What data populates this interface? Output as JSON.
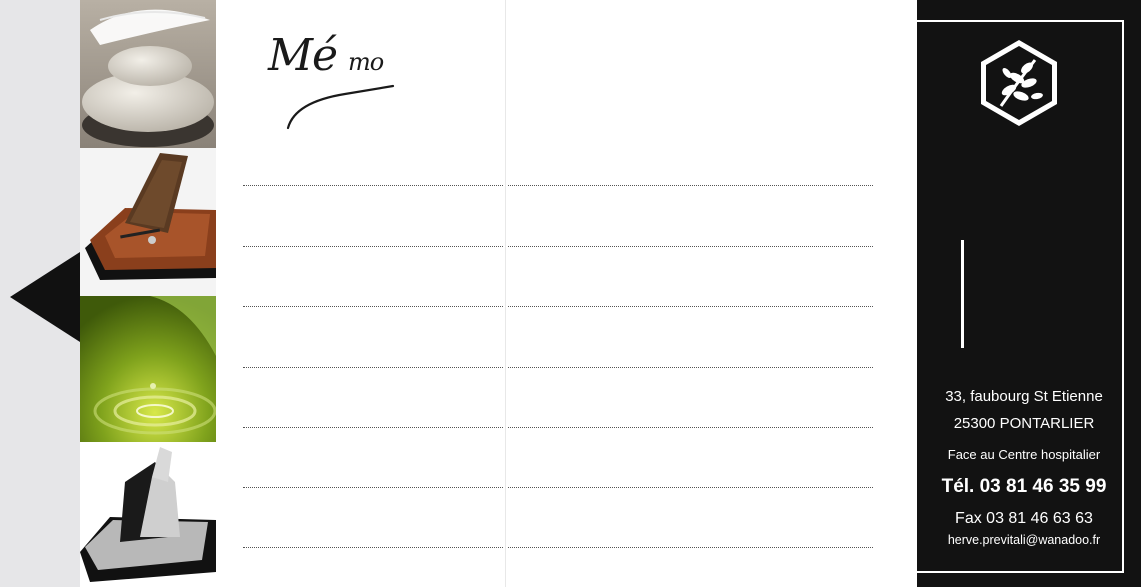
{
  "memo": {
    "title": "Mé",
    "title_small": "mo"
  },
  "contact": {
    "address_line1": "33, faubourg St Etienne",
    "address_line2": "25300 PONTARLIER",
    "location_note": "Face au Centre hospitalier",
    "phone": "Tél. 03 81 46 35 99",
    "fax": "Fax 03 81 46 63 63",
    "email": "herve.previtali@wanadoo.fr"
  },
  "photos": [
    "stones-feather-photo",
    "book-monument-photo",
    "water-drop-leaf-photo",
    "granite-monument-photo"
  ],
  "colors": {
    "panel": "#121212",
    "strip": "#e6e6e8",
    "text": "#ffffff"
  },
  "icons": {
    "logo": "tree-branch-hexagon-icon",
    "arrow": "left-arrow-icon"
  }
}
